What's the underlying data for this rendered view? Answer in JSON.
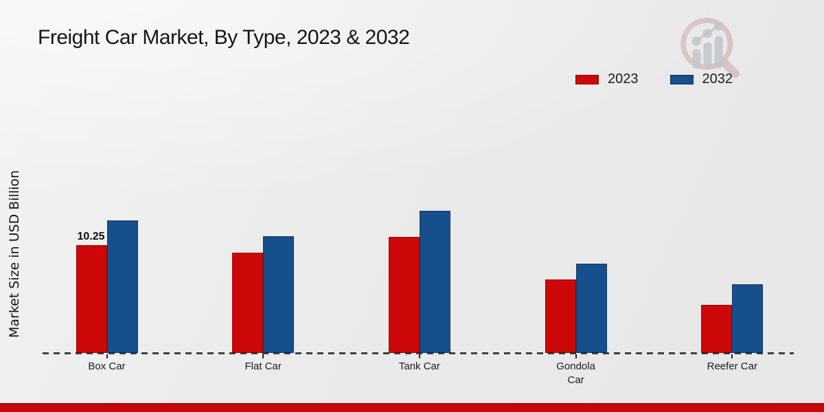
{
  "title": "Freight Car Market, By Type, 2023 & 2032",
  "y_axis_label": "Market Size in USD Billion",
  "icons": {
    "watermark": "magnifier-bar-chart-logo"
  },
  "colors": {
    "series_2023": "#cc0808",
    "series_2023_border": "#9d0404",
    "series_2032": "#16508c",
    "series_2032_border": "#0e3a68",
    "footer_bar": "#c60808",
    "background": "#ebebeb",
    "baseline": "#1a1a1a"
  },
  "legend": {
    "items": [
      {
        "label": "2023",
        "color": "#cc0808"
      },
      {
        "label": "2032",
        "color": "#16508c"
      }
    ]
  },
  "chart_data": {
    "type": "bar",
    "title": "Freight Car Market, By Type, 2023 & 2032",
    "ylabel": "Market Size in USD Billion",
    "xlabel": "",
    "categories": [
      "Box Car",
      "Flat Car",
      "Tank Car",
      "Gondola Car",
      "Reefer Car"
    ],
    "series": [
      {
        "name": "2023",
        "color": "#cc0808",
        "border": "#9d0404",
        "values": [
          10.25,
          9.5,
          11.0,
          7.0,
          4.6
        ]
      },
      {
        "name": "2032",
        "color": "#16508c",
        "border": "#0e3a68",
        "values": [
          12.6,
          11.1,
          13.5,
          8.5,
          6.5
        ]
      }
    ],
    "data_labels": [
      {
        "series": "2023",
        "category": "Box Car",
        "text": "10.25"
      }
    ],
    "ylim": [
      0,
      14.7
    ],
    "grid": false,
    "legend_position": "top-right",
    "baseline_style": "dashed"
  }
}
